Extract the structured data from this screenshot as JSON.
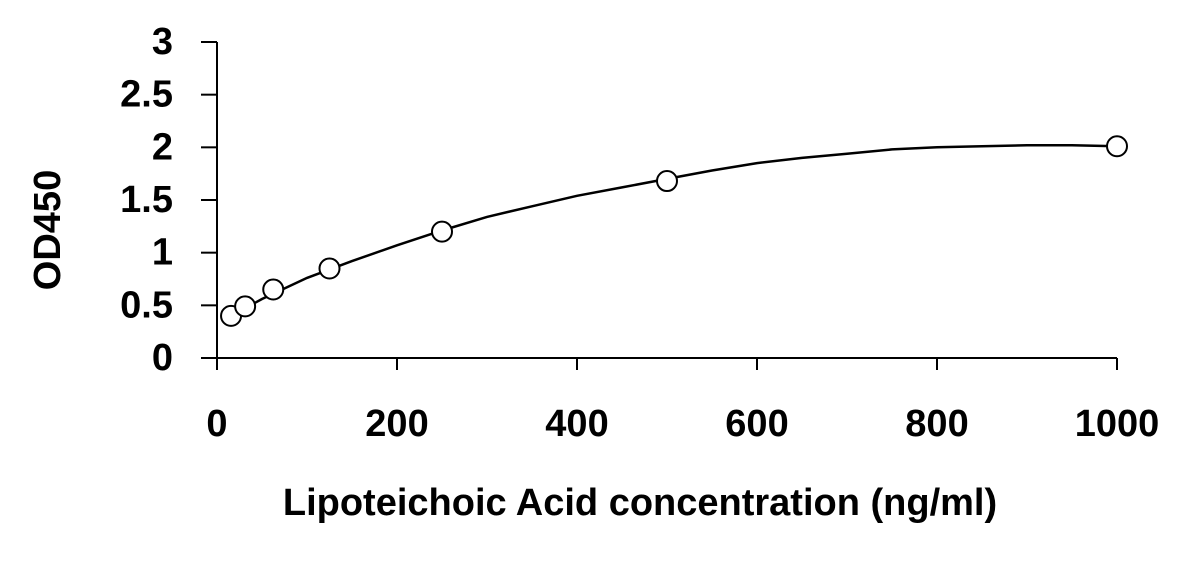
{
  "chart_data": {
    "type": "scatter",
    "x_label": "Lipoteichoic Acid concentration (ng/ml)",
    "y_label": "OD450",
    "x": [
      15.6,
      31.25,
      62.5,
      125,
      250,
      500,
      1000
    ],
    "values": [
      0.4,
      0.49,
      0.65,
      0.85,
      1.2,
      1.68,
      2.01
    ],
    "color": "#000000",
    "fit": {
      "x": [
        15.6,
        50,
        100,
        150,
        200,
        250,
        300,
        350,
        400,
        450,
        500,
        550,
        600,
        650,
        700,
        750,
        800,
        850,
        900,
        950,
        1000
      ],
      "values": [
        0.4,
        0.56,
        0.76,
        0.92,
        1.07,
        1.21,
        1.34,
        1.44,
        1.54,
        1.62,
        1.7,
        1.78,
        1.85,
        1.9,
        1.94,
        1.98,
        2.0,
        2.01,
        2.02,
        2.02,
        2.01
      ]
    },
    "xlim": [
      0,
      1000
    ],
    "xticks": [
      0,
      200,
      400,
      600,
      800,
      1000
    ],
    "ylim": [
      0,
      3
    ],
    "yticks": [
      0,
      0.5,
      1,
      1.5,
      2,
      2.5,
      3
    ],
    "grid": false
  }
}
